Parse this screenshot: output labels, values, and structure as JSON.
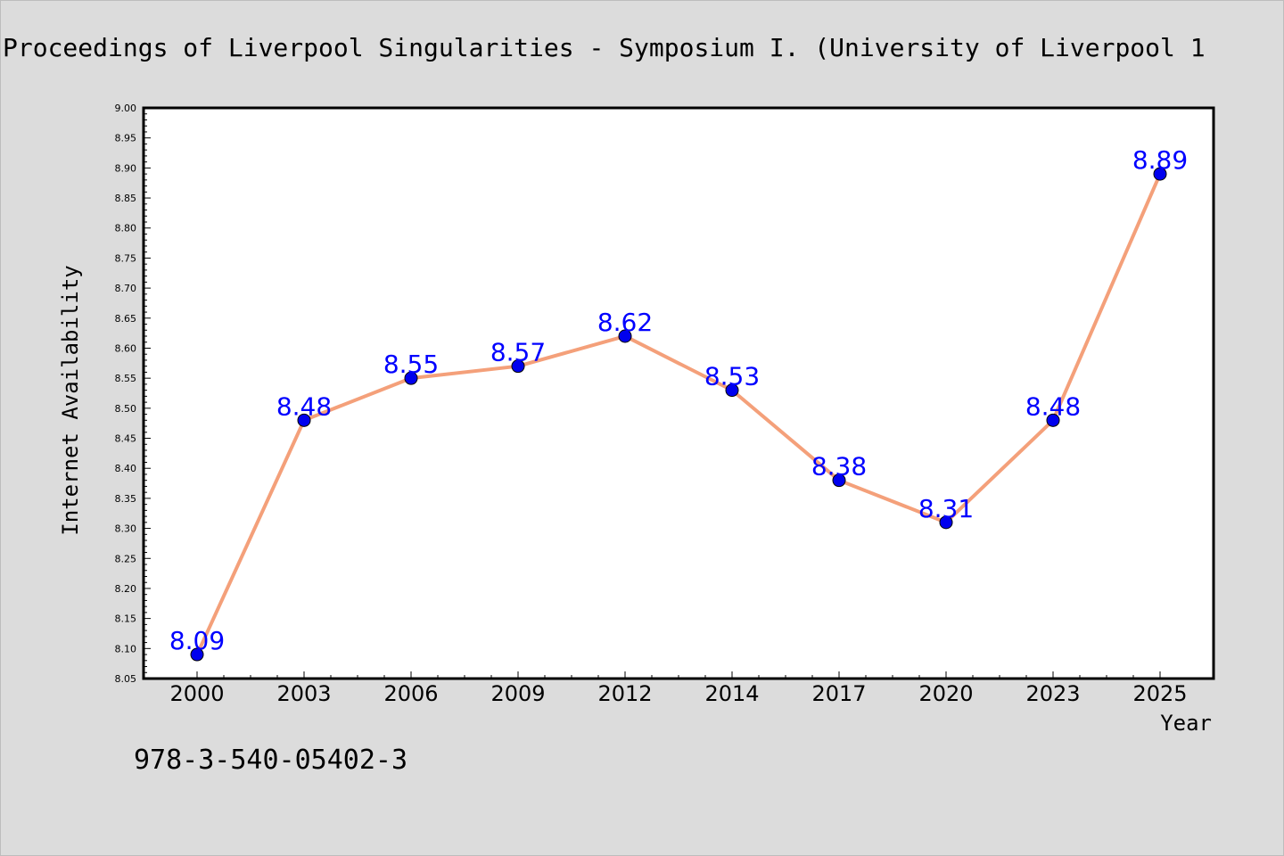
{
  "chart_data": {
    "type": "line",
    "title": "Proceedings of Liverpool Singularities - Symposium I. (University of Liverpool 1",
    "xlabel": "Year",
    "ylabel": "Internet Availability",
    "categories": [
      "2000",
      "2003",
      "2006",
      "2009",
      "2012",
      "2014",
      "2017",
      "2020",
      "2023",
      "2025"
    ],
    "series": [
      {
        "values": [
          8.09,
          8.48,
          8.55,
          8.57,
          8.62,
          8.53,
          8.38,
          8.31,
          8.48,
          8.89
        ],
        "data_labels": [
          "8.09",
          "8.48",
          "8.55",
          "8.57",
          "8.62",
          "8.53",
          "8.38",
          "8.31",
          "8.48",
          "8.89"
        ],
        "line_color": "#f4a07a",
        "marker_color": "#0000ee"
      }
    ],
    "ylim": [
      8.05,
      9.0
    ],
    "yticks": [
      "8.05",
      "8.10",
      "8.15",
      "8.20",
      "8.25",
      "8.30",
      "8.35",
      "8.40",
      "8.45",
      "8.50",
      "8.55",
      "8.60",
      "8.65",
      "8.70",
      "8.75",
      "8.80",
      "8.85",
      "8.90",
      "8.95",
      "9.00"
    ],
    "grid": false,
    "label_color": "#0000ff",
    "background_color": "#dcdcdc"
  },
  "footer_text": "978-3-540-05402-3"
}
